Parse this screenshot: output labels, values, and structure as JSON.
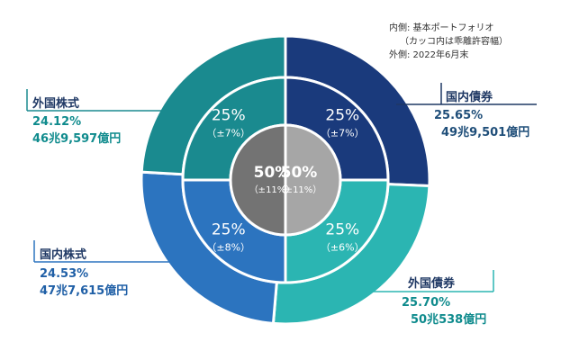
{
  "chart_data": {
    "type": "pie",
    "notes": [
      "内側: 基本ポートフォリオ",
      "（カッコ内は乖離許容幅）",
      "外側: 2022年6月末"
    ],
    "inner": {
      "values": [
        50,
        50
      ],
      "labels": [
        "50%",
        "50%"
      ],
      "tolerances": [
        "（±11%）",
        "（±11%）"
      ]
    },
    "middle": [
      {
        "category": "国内債券",
        "value": 25,
        "label": "25%",
        "tolerance": "（±7%）"
      },
      {
        "category": "外国債券",
        "value": 25,
        "label": "25%",
        "tolerance": "（±6%）"
      },
      {
        "category": "国内株式",
        "value": 25,
        "label": "25%",
        "tolerance": "（±8%）"
      },
      {
        "category": "外国株式",
        "value": 25,
        "label": "25%",
        "tolerance": "（±7%）"
      }
    ],
    "outer": [
      {
        "category": "国内債券",
        "value": 25.65,
        "percent_label": "25.65%",
        "amount": "49兆9,501億円"
      },
      {
        "category": "外国債券",
        "value": 25.7,
        "percent_label": "25.70%",
        "amount": "50兆538億円"
      },
      {
        "category": "国内株式",
        "value": 24.53,
        "percent_label": "24.53%",
        "amount": "47兆7,615億円"
      },
      {
        "category": "外国株式",
        "value": 24.12,
        "percent_label": "24.12%",
        "amount": "46兆9,597億円"
      }
    ],
    "colors": {
      "国内債券": "#1a3a7c",
      "外国債券": "#2bb5b2",
      "国内株式": "#2c74bf",
      "外国株式": "#1a8a8f",
      "inner_left": "#737373",
      "inner_right": "#a6a6a6",
      "text_dark_blue": "#1f4e79",
      "text_teal": "#0f8b8d",
      "text_blue": "#1f5fa6"
    }
  }
}
